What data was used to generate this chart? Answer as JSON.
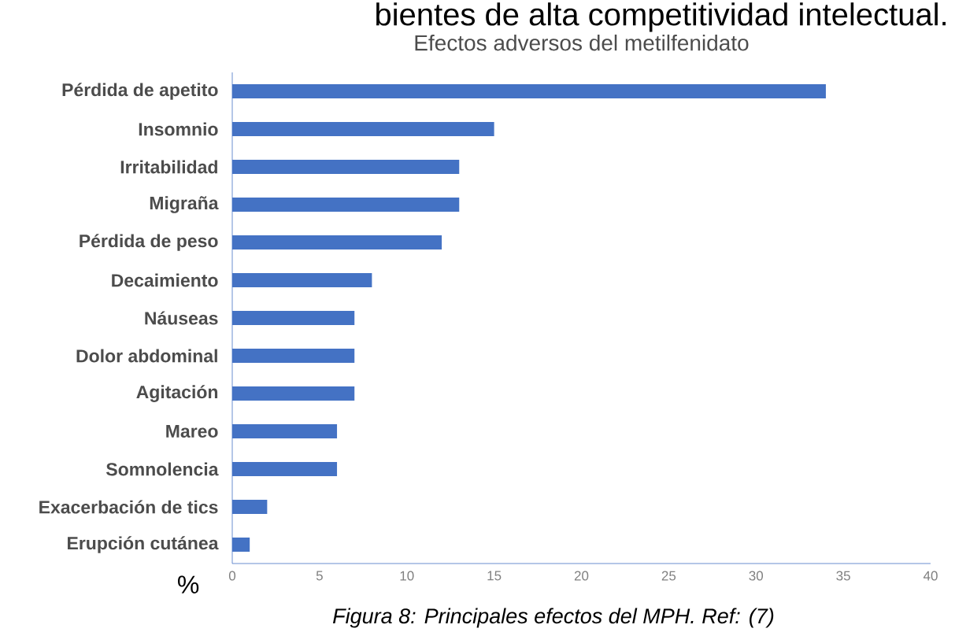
{
  "chart_data": {
    "type": "bar",
    "orientation": "horizontal",
    "title": "Efectos adversos del metilfenidato",
    "xlabel": "%",
    "categories": [
      "Pérdida de apetito",
      "Insomnio",
      "Irritabilidad",
      "Migraña",
      "Pérdida de peso",
      "Decaimiento",
      "Náuseas",
      "Dolor abdominal",
      "Agitación",
      "Mareo",
      "Somnolencia",
      "Exacerbación de tics",
      "Erupción cutánea"
    ],
    "values": [
      34,
      15,
      13,
      13,
      12,
      8,
      7,
      7,
      7,
      6,
      6,
      2,
      1
    ],
    "color": "#4472c4",
    "xlim": [
      0,
      40
    ],
    "xticks": [
      0,
      5,
      10,
      15,
      20,
      25,
      30,
      35,
      40
    ],
    "annotations": [
      "bientes de alta competitividad intelectual.",
      "Figura 8: Principales efectos del MPH. Ref: (7)"
    ]
  }
}
